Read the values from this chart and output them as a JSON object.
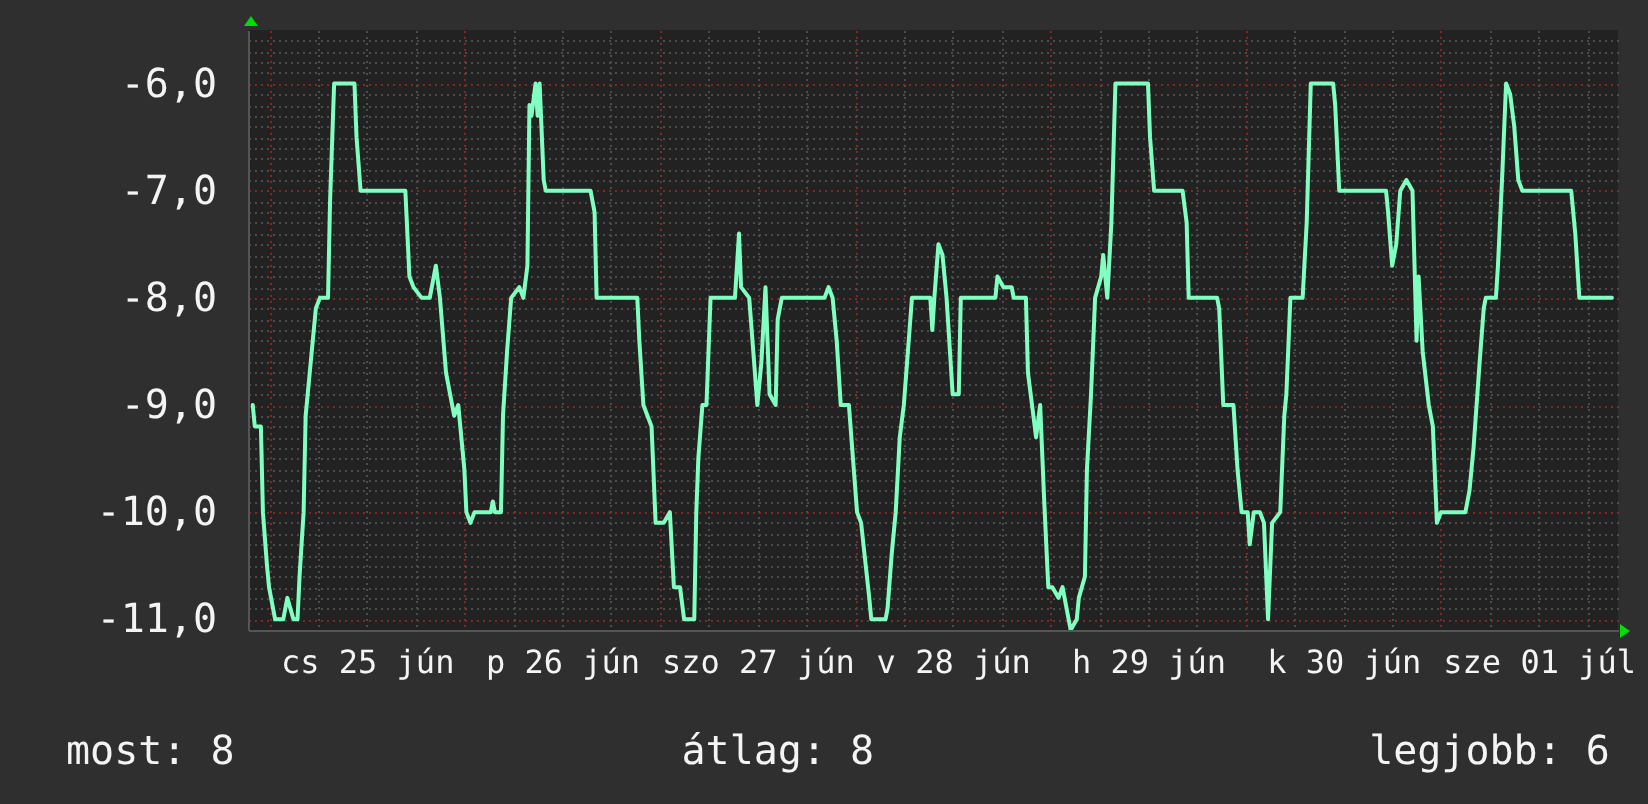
{
  "chart_data": {
    "type": "line",
    "color": "#80ffc0",
    "grid": true,
    "x": [
      "--06-24T22:00",
      "--06-24T22:15",
      "--06-24T23:00",
      "--06-24T23:15",
      "--06-24T23:45",
      "--06-25T00:00",
      "--06-25T00:45",
      "--06-25T01:45",
      "--06-25T02:15",
      "--06-25T03:00",
      "--06-25T03:30",
      "--06-25T03:45",
      "--06-25T04:15",
      "--06-25T04:30",
      "--06-25T05:00",
      "--06-25T05:45",
      "--06-25T06:15",
      "--06-25T07:15",
      "--06-25T07:30",
      "--06-25T08:00",
      "--06-25T10:30",
      "--06-25T10:45",
      "--06-25T11:15",
      "--06-25T16:45",
      "--06-25T17:15",
      "--06-25T17:45",
      "--06-25T18:45",
      "--06-25T19:45",
      "--06-25T20:30",
      "--06-25T21:00",
      "--06-25T21:45",
      "--06-25T22:15",
      "--06-25T22:45",
      "--06-25T23:15",
      "--06-26T00:00",
      "--06-26T00:15",
      "--06-26T00:45",
      "--06-26T01:15",
      "--06-26T03:15",
      "--06-26T03:30",
      "--06-26T03:45",
      "--06-26T04:30",
      "--06-26T04:45",
      "--06-26T05:15",
      "--06-26T05:45",
      "--06-26T06:45",
      "--06-26T07:15",
      "--06-26T07:45",
      "--06-26T08:00",
      "--06-26T08:15",
      "--06-26T08:45",
      "--06-26T09:00",
      "--06-26T09:15",
      "--06-26T09:45",
      "--06-26T10:00",
      "--06-26T15:30",
      "--06-26T16:00",
      "--06-26T16:15",
      "--06-26T21:15",
      "--06-26T21:30",
      "--06-26T22:00",
      "--06-26T23:00",
      "--06-26T23:30",
      "--06-27T00:30",
      "--06-27T01:15",
      "--06-27T01:45",
      "--06-27T02:30",
      "--06-27T03:00",
      "--06-27T04:15",
      "--06-27T04:30",
      "--06-27T04:45",
      "--06-27T05:15",
      "--06-27T05:45",
      "--06-27T06:15",
      "--06-27T09:15",
      "--06-27T09:45",
      "--06-27T10:00",
      "--06-27T11:00",
      "--06-27T12:00",
      "--06-27T12:30",
      "--06-27T13:00",
      "--06-27T13:30",
      "--06-27T14:15",
      "--06-27T14:30",
      "--06-27T15:00",
      "--06-27T20:15",
      "--06-27T20:45",
      "--06-27T21:15",
      "--06-27T21:45",
      "--06-27T22:15",
      "--06-27T23:15",
      "--06-28T00:15",
      "--06-28T00:45",
      "--06-28T01:45",
      "--06-28T02:00",
      "--06-28T03:45",
      "--06-28T04:00",
      "--06-28T04:30",
      "--06-28T05:00",
      "--06-28T05:30",
      "--06-28T06:00",
      "--06-28T06:30",
      "--06-28T07:00",
      "--06-28T09:15",
      "--06-28T09:30",
      "--06-28T09:45",
      "--06-28T10:15",
      "--06-28T10:45",
      "--06-28T11:15",
      "--06-28T12:00",
      "--06-28T12:45",
      "--06-28T13:00",
      "--06-28T17:15",
      "--06-28T17:30",
      "--06-28T18:15",
      "--06-28T19:15",
      "--06-28T19:30",
      "--06-28T21:00",
      "--06-28T21:15",
      "--06-28T21:45",
      "--06-28T22:15",
      "--06-28T22:45",
      "--06-28T23:15",
      "--06-28T23:45",
      "--06-29T00:15",
      "--06-29T01:00",
      "--06-29T01:30",
      "--06-29T02:00",
      "--06-29T02:30",
      "--06-29T03:15",
      "--06-29T03:30",
      "--06-29T04:15",
      "--06-29T04:30",
      "--06-29T05:00",
      "--06-29T05:30",
      "--06-29T06:15",
      "--06-29T06:30",
      "--06-29T07:00",
      "--06-29T07:30",
      "--06-29T08:00",
      "--06-29T12:00",
      "--06-29T12:15",
      "--06-29T12:45",
      "--06-29T16:15",
      "--06-29T16:45",
      "--06-29T17:00",
      "--06-29T20:30",
      "--06-29T20:45",
      "--06-29T21:15",
      "--06-29T22:30",
      "--06-29T23:00",
      "--06-29T23:30",
      "--06-30T00:15",
      "--06-30T00:30",
      "--06-30T01:00",
      "--06-30T01:45",
      "--06-30T02:15",
      "--06-30T02:45",
      "--06-30T03:15",
      "--06-30T04:15",
      "--06-30T04:45",
      "--06-30T05:00",
      "--06-30T05:30",
      "--06-30T07:00",
      "--06-30T07:30",
      "--06-30T08:00",
      "--06-30T10:45",
      "--06-30T11:00",
      "--06-30T11:30",
      "--06-30T17:15",
      "--06-30T17:30",
      "--06-30T18:00",
      "--06-30T18:30",
      "--06-30T19:00",
      "--06-30T19:45",
      "--06-30T20:30",
      "--06-30T21:00",
      "--06-30T21:15",
      "--06-30T21:45",
      "--06-30T22:30",
      "--06-30T23:00",
      "--06-30T23:30",
      "--07-01T00:00",
      "--07-01T03:00",
      "--07-01T03:30",
      "--07-01T04:00",
      "--07-01T04:45",
      "--07-01T05:15",
      "--07-01T05:30",
      "--07-01T06:45",
      "--07-01T07:00",
      "--07-01T07:30",
      "--07-01T08:00",
      "--07-01T08:30",
      "--07-01T09:00",
      "--07-01T09:30",
      "--07-01T10:00",
      "--07-01T16:00",
      "--07-01T16:30",
      "--07-01T17:00",
      "--07-01T21:00"
    ],
    "values": [
      -9.0,
      -9.2,
      -9.2,
      -10.0,
      -10.5,
      -10.7,
      -11.0,
      -11.0,
      -10.8,
      -11.0,
      -11.0,
      -10.6,
      -10.0,
      -9.1,
      -8.7,
      -8.1,
      -8.0,
      -8.0,
      -7.1,
      -6.0,
      -6.0,
      -6.5,
      -7.0,
      -7.0,
      -7.8,
      -7.9,
      -8.0,
      -8.0,
      -7.7,
      -8.0,
      -8.7,
      -8.9,
      -9.1,
      -9.0,
      -9.6,
      -10.0,
      -10.1,
      -10.0,
      -10.0,
      -9.9,
      -10.0,
      -10.0,
      -9.1,
      -8.5,
      -8.0,
      -7.9,
      -8.0,
      -7.7,
      -6.2,
      -6.3,
      -6.0,
      -6.3,
      -6.0,
      -6.9,
      -7.0,
      -7.0,
      -7.2,
      -8.0,
      -8.0,
      -8.4,
      -9.0,
      -9.2,
      -10.1,
      -10.1,
      -10.0,
      -10.7,
      -10.7,
      -11.0,
      -11.0,
      -10.0,
      -9.5,
      -9.0,
      -9.0,
      -8.0,
      -8.0,
      -7.4,
      -7.9,
      -8.0,
      -9.0,
      -8.6,
      -7.9,
      -8.9,
      -9.0,
      -8.2,
      -8.0,
      -8.0,
      -7.9,
      -8.0,
      -8.4,
      -9.0,
      -9.0,
      -10.0,
      -10.1,
      -10.8,
      -11.0,
      -11.0,
      -10.9,
      -10.4,
      -10.0,
      -9.3,
      -9.0,
      -8.5,
      -8.0,
      -8.0,
      -8.3,
      -8.0,
      -7.5,
      -7.6,
      -8.0,
      -8.9,
      -8.9,
      -8.0,
      -8.0,
      -7.8,
      -7.9,
      -7.9,
      -8.0,
      -8.0,
      -8.7,
      -9.0,
      -9.3,
      -9.0,
      -9.9,
      -10.7,
      -10.7,
      -10.8,
      -10.7,
      -10.9,
      -11.1,
      -11.0,
      -10.8,
      -10.6,
      -9.6,
      -8.9,
      -8.0,
      -7.8,
      -7.6,
      -8.0,
      -7.3,
      -6.0,
      -6.0,
      -6.5,
      -7.0,
      -7.0,
      -7.3,
      -8.0,
      -8.0,
      -8.1,
      -9.0,
      -9.0,
      -9.6,
      -10.0,
      -10.0,
      -10.3,
      -10.0,
      -10.0,
      -10.1,
      -11.0,
      -10.1,
      -10.0,
      -9.1,
      -8.9,
      -8.0,
      -8.0,
      -7.3,
      -6.0,
      -6.0,
      -6.2,
      -7.0,
      -7.0,
      -7.2,
      -7.7,
      -7.5,
      -7.0,
      -6.9,
      -7.0,
      -8.4,
      -7.8,
      -8.5,
      -9.0,
      -9.2,
      -10.1,
      -10.0,
      -10.0,
      -9.8,
      -9.4,
      -8.6,
      -8.1,
      -8.0,
      -8.0,
      -7.7,
      -6.9,
      -6.0,
      -6.1,
      -6.4,
      -6.9,
      -7.0,
      -7.0,
      -7.4,
      -8.0,
      -8.0
    ],
    "xlim": [
      "--06-24T21:25",
      "--07-01T21:45"
    ],
    "xticks": [
      {
        "value": "--06-25T00:00",
        "label": null
      },
      {
        "value": "--06-25T06:00",
        "label": null
      },
      {
        "value": "--06-25T12:00",
        "label": "cs 25 jún"
      },
      {
        "value": "--06-25T18:00",
        "label": null
      },
      {
        "value": "--06-26T00:00",
        "label": null
      },
      {
        "value": "--06-26T06:00",
        "label": null
      },
      {
        "value": "--06-26T12:00",
        "label": "p 26 jún"
      },
      {
        "value": "--06-26T18:00",
        "label": null
      },
      {
        "value": "--06-27T00:00",
        "label": null
      },
      {
        "value": "--06-27T06:00",
        "label": null
      },
      {
        "value": "--06-27T12:00",
        "label": "szo 27 jún"
      },
      {
        "value": "--06-27T18:00",
        "label": null
      },
      {
        "value": "--06-28T00:00",
        "label": null
      },
      {
        "value": "--06-28T06:00",
        "label": null
      },
      {
        "value": "--06-28T12:00",
        "label": "v 28 jún"
      },
      {
        "value": "--06-28T18:00",
        "label": null
      },
      {
        "value": "--06-29T00:00",
        "label": null
      },
      {
        "value": "--06-29T06:00",
        "label": null
      },
      {
        "value": "--06-29T12:00",
        "label": "h 29 jún"
      },
      {
        "value": "--06-29T18:00",
        "label": null
      },
      {
        "value": "--06-30T00:00",
        "label": null
      },
      {
        "value": "--06-30T06:00",
        "label": null
      },
      {
        "value": "--06-30T12:00",
        "label": "k 30 jún"
      },
      {
        "value": "--06-30T18:00",
        "label": null
      },
      {
        "value": "--07-01T00:00",
        "label": null
      },
      {
        "value": "--07-01T06:00",
        "label": null
      },
      {
        "value": "--07-01T12:00",
        "label": "sze 01 júl"
      },
      {
        "value": "--07-01T18:00",
        "label": null
      }
    ],
    "ylim": [
      -11.1,
      -5.5
    ],
    "yticks": [
      {
        "value": -11.0,
        "label": "-11,0"
      },
      {
        "value": -10.9,
        "label": null
      },
      {
        "value": -10.8,
        "label": null
      },
      {
        "value": -10.7,
        "label": null
      },
      {
        "value": -10.6,
        "label": null
      },
      {
        "value": -10.5,
        "label": null
      },
      {
        "value": -10.4,
        "label": null
      },
      {
        "value": -10.3,
        "label": null
      },
      {
        "value": -10.2,
        "label": null
      },
      {
        "value": -10.1,
        "label": null
      },
      {
        "value": -10.0,
        "label": "-10,0"
      },
      {
        "value": -9.9,
        "label": null
      },
      {
        "value": -9.8,
        "label": null
      },
      {
        "value": -9.7,
        "label": null
      },
      {
        "value": -9.6,
        "label": null
      },
      {
        "value": -9.5,
        "label": null
      },
      {
        "value": -9.4,
        "label": null
      },
      {
        "value": -9.3,
        "label": null
      },
      {
        "value": -9.2,
        "label": null
      },
      {
        "value": -9.1,
        "label": null
      },
      {
        "value": -9.0,
        "label": "-9,0"
      },
      {
        "value": -8.9,
        "label": null
      },
      {
        "value": -8.8,
        "label": null
      },
      {
        "value": -8.7,
        "label": null
      },
      {
        "value": -8.6,
        "label": null
      },
      {
        "value": -8.5,
        "label": null
      },
      {
        "value": -8.4,
        "label": null
      },
      {
        "value": -8.3,
        "label": null
      },
      {
        "value": -8.2,
        "label": null
      },
      {
        "value": -8.1,
        "label": null
      },
      {
        "value": -8.0,
        "label": "-8,0"
      },
      {
        "value": -7.9,
        "label": null
      },
      {
        "value": -7.8,
        "label": null
      },
      {
        "value": -7.7,
        "label": null
      },
      {
        "value": -7.6,
        "label": null
      },
      {
        "value": -7.5,
        "label": null
      },
      {
        "value": -7.4,
        "label": null
      },
      {
        "value": -7.3,
        "label": null
      },
      {
        "value": -7.2,
        "label": null
      },
      {
        "value": -7.1,
        "label": null
      },
      {
        "value": -7.0,
        "label": "-7,0"
      },
      {
        "value": -6.9,
        "label": null
      },
      {
        "value": -6.8,
        "label": null
      },
      {
        "value": -6.7,
        "label": null
      },
      {
        "value": -6.6,
        "label": null
      },
      {
        "value": -6.5,
        "label": null
      },
      {
        "value": -6.4,
        "label": null
      },
      {
        "value": -6.3,
        "label": null
      },
      {
        "value": -6.2,
        "label": null
      },
      {
        "value": -6.1,
        "label": null
      },
      {
        "value": -6.0,
        "label": "-6,0"
      },
      {
        "value": -5.9,
        "label": null
      },
      {
        "value": -5.8,
        "label": null
      },
      {
        "value": -5.7,
        "label": null
      },
      {
        "value": -5.6,
        "label": null
      }
    ],
    "annotations": [
      "most: 8",
      "átlag: 8",
      "legjobb: 6"
    ]
  }
}
